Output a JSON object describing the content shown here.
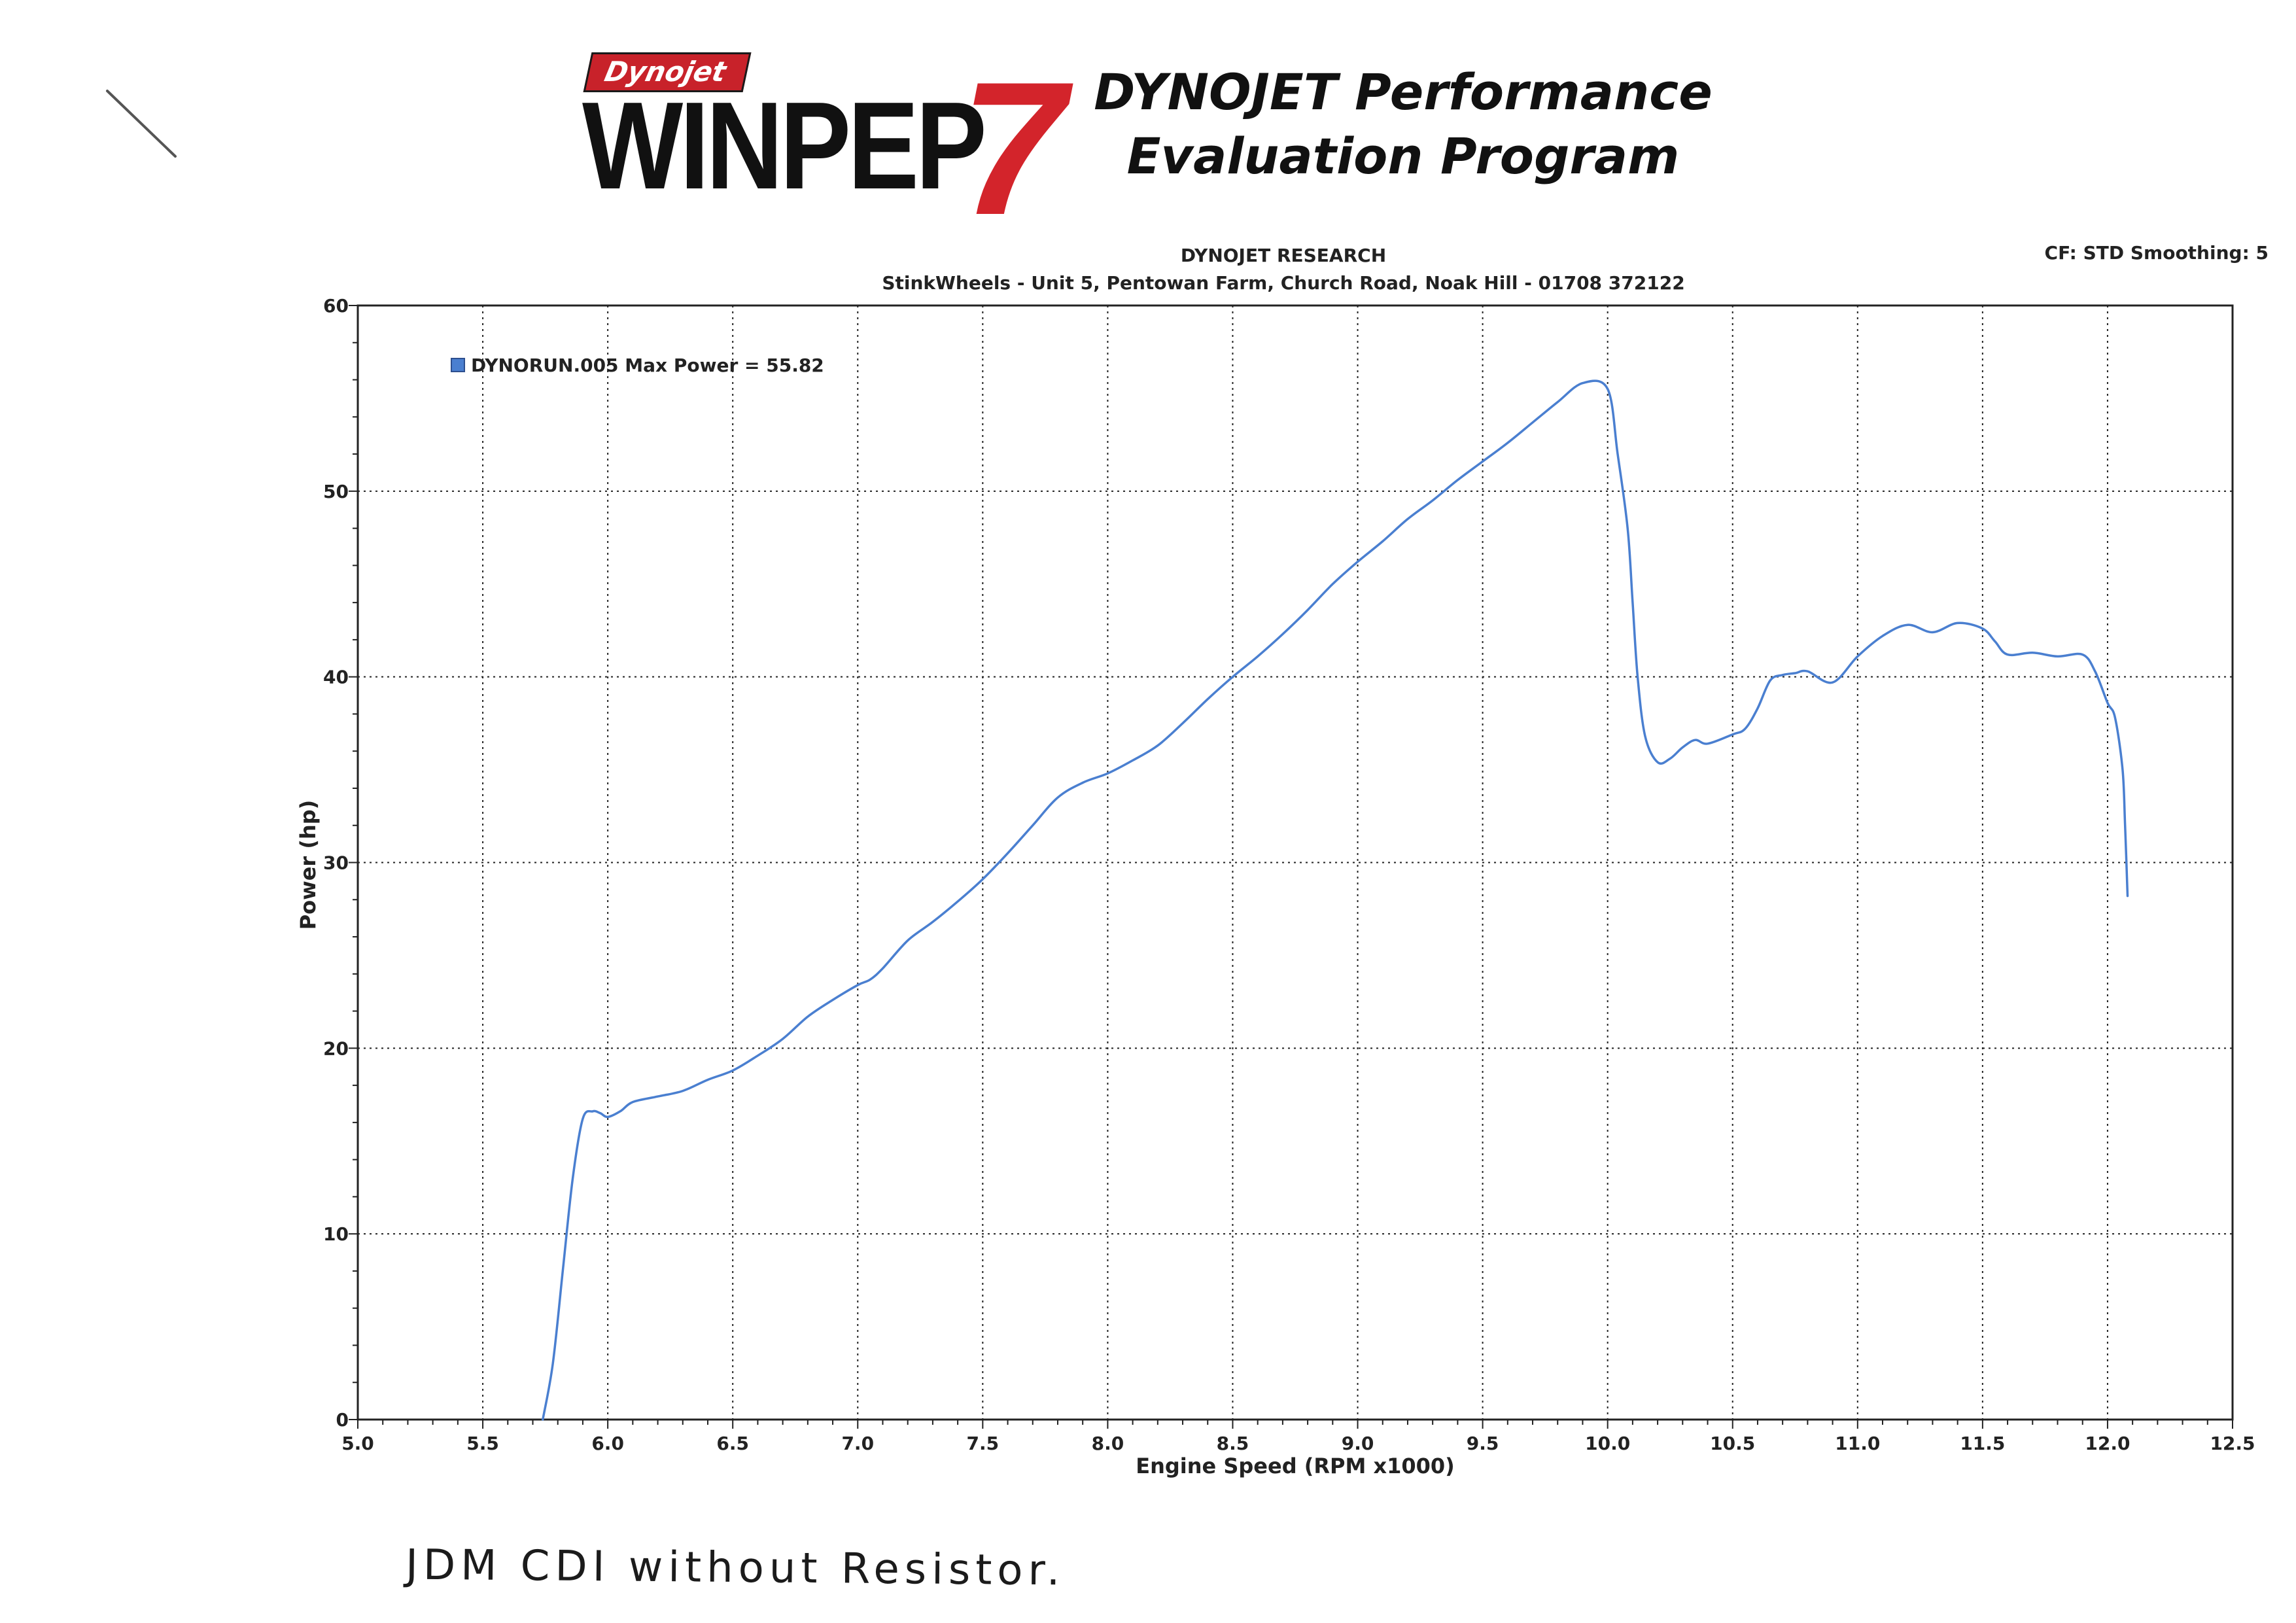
{
  "header": {
    "logo_brand": "Dynojet",
    "logo_word": "WINPEP",
    "logo_version": "7",
    "product_line1": "DYNOJET Performance",
    "product_line2": "Evaluation Program",
    "report_title": "DYNOJET RESEARCH",
    "report_subtitle": "StinkWheels - Unit 5, Pentowan Farm, Church Road, Noak Hill - 01708 372122",
    "settings": "CF: STD  Smoothing: 5"
  },
  "colors": {
    "series": "#4a7fd0",
    "grid": "#222222",
    "frame": "#222222",
    "logo_red": "#d3242b"
  },
  "chart_data": {
    "type": "line",
    "title": "DYNOJET RESEARCH",
    "subtitle": "StinkWheels - Unit 5, Pentowan Farm, Church Road, Noak Hill - 01708 372122",
    "xlabel": "Engine Speed (RPM x1000)",
    "ylabel": "Power (hp)",
    "xlim": [
      5.0,
      12.5
    ],
    "ylim": [
      0,
      60
    ],
    "xticks": [
      "5.0",
      "5.5",
      "6.0",
      "6.5",
      "7.0",
      "7.5",
      "8.0",
      "8.5",
      "9.0",
      "9.5",
      "10.0",
      "10.5",
      "11.0",
      "11.5",
      "12.0",
      "12.5"
    ],
    "yticks": [
      "0",
      "10",
      "20",
      "30",
      "40",
      "50",
      "60"
    ],
    "grid": true,
    "legend_position": "top-left",
    "series": [
      {
        "name": "DYNORUN.005 Max Power = 55.82",
        "x": [
          5.74,
          5.78,
          5.82,
          5.86,
          5.9,
          5.94,
          5.97,
          6.0,
          6.05,
          6.1,
          6.2,
          6.3,
          6.4,
          6.5,
          6.6,
          6.7,
          6.8,
          6.9,
          7.0,
          7.05,
          7.1,
          7.2,
          7.3,
          7.4,
          7.5,
          7.6,
          7.7,
          7.8,
          7.9,
          8.0,
          8.1,
          8.2,
          8.3,
          8.4,
          8.5,
          8.6,
          8.7,
          8.8,
          8.9,
          9.0,
          9.1,
          9.2,
          9.3,
          9.4,
          9.5,
          9.6,
          9.7,
          9.8,
          9.9,
          10.0,
          10.04,
          10.08,
          10.1,
          10.12,
          10.15,
          10.2,
          10.25,
          10.3,
          10.35,
          10.4,
          10.5,
          10.55,
          10.6,
          10.65,
          10.7,
          10.75,
          10.8,
          10.9,
          11.0,
          11.1,
          11.2,
          11.3,
          11.4,
          11.5,
          11.55,
          11.6,
          11.7,
          11.8,
          11.9,
          11.95,
          12.0,
          12.03,
          12.06,
          12.07,
          12.08
        ],
        "y": [
          0,
          3,
          8,
          13,
          16.2,
          16.6,
          16.5,
          16.3,
          16.6,
          17.1,
          17.4,
          17.7,
          18.3,
          18.8,
          19.6,
          20.5,
          21.7,
          22.6,
          23.4,
          23.7,
          24.3,
          25.8,
          26.8,
          27.9,
          29.1,
          30.5,
          32.0,
          33.5,
          34.3,
          34.8,
          35.5,
          36.3,
          37.5,
          38.8,
          40.0,
          41.1,
          42.3,
          43.6,
          45.0,
          46.2,
          47.3,
          48.5,
          49.5,
          50.6,
          51.6,
          52.6,
          53.7,
          54.8,
          55.82,
          55.5,
          52.0,
          48.0,
          44.0,
          40.0,
          36.8,
          35.4,
          35.6,
          36.2,
          36.6,
          36.4,
          36.9,
          37.2,
          38.3,
          39.8,
          40.1,
          40.2,
          40.3,
          39.7,
          41.1,
          42.2,
          42.8,
          42.4,
          42.9,
          42.6,
          41.9,
          41.2,
          41.3,
          41.1,
          41.2,
          40.3,
          38.6,
          37.8,
          35.0,
          32.0,
          28.2
        ]
      }
    ]
  },
  "annotation": {
    "handwritten_note": "JDM CDI without Resistor."
  }
}
